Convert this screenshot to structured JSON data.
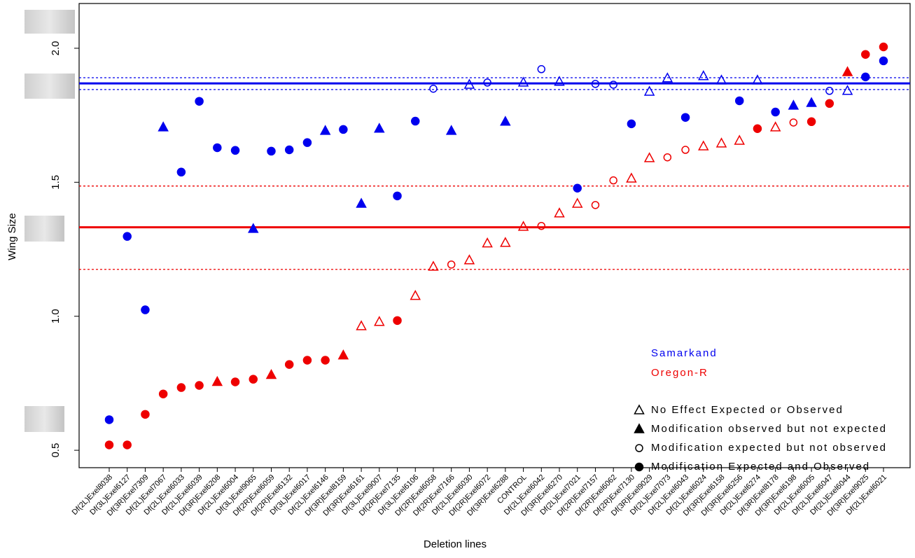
{
  "chart_data": {
    "type": "scatter",
    "x_label": "Deletion lines",
    "y_label": "Wing Size",
    "categories": [
      "Df(2L)Exel8038",
      "Df(3L)Exel6127",
      "Df(3R)Exel7309",
      "Df(2L)Exel7067",
      "Df(2L)Exel6033",
      "Df(2L)Exel6039",
      "Df(3R)Exel6208",
      "Df(2L)Exel6004",
      "Df(3L)Exel9065",
      "Df(2R)Exel6059",
      "Df(2R)Exel6132",
      "Df(3L)Exel6017",
      "Df(2L)Exel6146",
      "Df(3R)Exel8159",
      "Df(3R)Exel6161",
      "Df(3L)Exel9007",
      "Df(2R)Exel7135",
      "Df(3L)Exel6106",
      "Df(2R)Exel6058",
      "Df(2R)Exel7166",
      "Df(2L)Exel6030",
      "Df(2R)Exel6072",
      "Df(3R)Exel6288",
      "CONTROL",
      "Df(2L)Exel6042",
      "Df(3R)Exel6270",
      "Df(2L)Exel7021",
      "Df(2R)Exel7157",
      "Df(2R)Exel6062",
      "Df(2R)Exel7130",
      "Df(3R)Exel9029",
      "Df(2L)Exel7073",
      "Df(2L)Exel6043",
      "Df(2L)Exel6024",
      "Df(3R)Exel6158",
      "Df(3R)Exel6256",
      "Df(2L)Exel6274",
      "Df(3R)Exel8178",
      "Df(3R)Exel6198",
      "Df(2L)Exel6005",
      "Df(2L)Exel6047",
      "Df(2L)Exel6044",
      "Df(3R)Exel9025",
      "Df(2L)Exel6021"
    ],
    "series": [
      {
        "name": "Samarkand",
        "color": "#0000ee",
        "values": [
          0.614,
          1.298,
          1.024,
          1.705,
          1.538,
          1.802,
          1.629,
          1.619,
          1.326,
          1.616,
          1.621,
          1.648,
          1.692,
          1.697,
          1.42,
          1.7,
          1.449,
          1.728,
          1.849,
          1.692,
          1.864,
          1.872,
          1.726,
          1.872,
          1.922,
          1.875,
          1.478,
          1.867,
          1.864,
          1.718,
          1.838,
          1.888,
          1.742,
          1.896,
          1.88,
          1.804,
          1.88,
          1.762,
          1.786,
          1.796,
          1.841,
          1.841,
          1.893,
          1.953
        ],
        "markers": [
          "circle-filled",
          "circle-filled",
          "circle-filled",
          "triangle-filled",
          "circle-filled",
          "circle-filled",
          "circle-filled",
          "circle-filled",
          "triangle-filled",
          "circle-filled",
          "circle-filled",
          "circle-filled",
          "triangle-filled",
          "circle-filled",
          "triangle-filled",
          "triangle-filled",
          "circle-filled",
          "circle-filled",
          "circle-open",
          "triangle-filled",
          "triangle-open",
          "circle-open",
          "triangle-filled",
          "triangle-open",
          "circle-open",
          "triangle-open",
          "circle-filled",
          "circle-open",
          "circle-open",
          "circle-filled",
          "triangle-open",
          "triangle-open",
          "circle-filled",
          "triangle-open",
          "triangle-open",
          "circle-filled",
          "triangle-open",
          "circle-filled",
          "triangle-filled",
          "triangle-filled",
          "circle-open",
          "triangle-open",
          "circle-filled",
          "circle-filled"
        ]
      },
      {
        "name": "Oregon-R",
        "color": "#ee0000",
        "values": [
          0.52,
          0.52,
          0.634,
          0.71,
          0.734,
          0.742,
          0.755,
          0.755,
          0.765,
          0.781,
          0.82,
          0.836,
          0.836,
          0.854,
          0.963,
          0.979,
          0.984,
          1.076,
          1.185,
          1.193,
          1.209,
          1.272,
          1.274,
          1.334,
          1.337,
          1.384,
          1.42,
          1.415,
          1.507,
          1.514,
          1.59,
          1.593,
          1.621,
          1.634,
          1.645,
          1.655,
          1.7,
          1.705,
          1.723,
          1.726,
          1.794,
          1.911,
          1.977,
          2.005
        ],
        "markers": [
          "circle-filled",
          "circle-filled",
          "circle-filled",
          "circle-filled",
          "circle-filled",
          "circle-filled",
          "triangle-filled",
          "circle-filled",
          "circle-filled",
          "triangle-filled",
          "circle-filled",
          "circle-filled",
          "circle-filled",
          "triangle-filled",
          "triangle-open",
          "triangle-open",
          "circle-filled",
          "triangle-open",
          "triangle-open",
          "circle-open",
          "triangle-open",
          "triangle-open",
          "triangle-open",
          "triangle-open",
          "circle-open",
          "triangle-open",
          "triangle-open",
          "circle-open",
          "circle-open",
          "triangle-open",
          "triangle-open",
          "circle-open",
          "circle-open",
          "triangle-open",
          "triangle-open",
          "triangle-open",
          "circle-filled",
          "triangle-open",
          "circle-open",
          "circle-filled",
          "circle-filled",
          "triangle-filled",
          "circle-filled",
          "circle-filled"
        ]
      }
    ],
    "reference_lines": [
      {
        "value": 1.869,
        "color": "#0000ee",
        "style": "solid"
      },
      {
        "value": 1.89,
        "color": "#0000ee",
        "style": "dotted"
      },
      {
        "value": 1.846,
        "color": "#0000ee",
        "style": "dotted"
      },
      {
        "value": 1.332,
        "color": "#ee0000",
        "style": "solid"
      },
      {
        "value": 1.486,
        "color": "#ee0000",
        "style": "dotted"
      },
      {
        "value": 1.175,
        "color": "#ee0000",
        "style": "dotted"
      }
    ],
    "legend_shapes": [
      {
        "label": "No Effect Expected or Observed",
        "marker": "triangle-open"
      },
      {
        "label": "Modification observed but not expected",
        "marker": "triangle-filled"
      },
      {
        "label": "Modification expected but not observed",
        "marker": "circle-open"
      },
      {
        "label": "Modification Expected and Observed",
        "marker": "circle-filled"
      }
    ],
    "ylim": [
      0.435,
      2.167
    ],
    "yticks": [
      {
        "value": 0.5,
        "label": "0.5"
      },
      {
        "value": 1.0,
        "label": "1.0"
      },
      {
        "value": 1.5,
        "label": "1.5"
      },
      {
        "value": 2.0,
        "label": "2.0"
      }
    ]
  }
}
